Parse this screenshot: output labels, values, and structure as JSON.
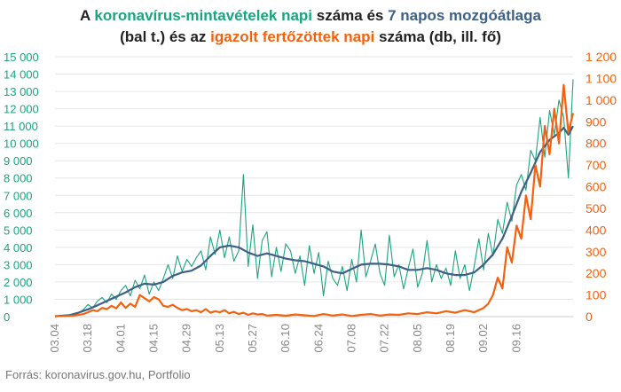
{
  "title": {
    "line1_prefix": "A ",
    "line1_green": "koronavírus-mintavételek napi",
    "line1_mid": " száma és ",
    "line1_blue": "7 napos mozgóátlaga",
    "line2_prefix": "(bal t.) és az ",
    "line2_orange": "igazolt fertőzöttek napi",
    "line2_suffix": " száma (db, ill. fő)"
  },
  "source": "Forrás: koronavirus.gov.hu, Portfolio",
  "colors": {
    "samples": "#1aa57e",
    "moving_avg": "#3e5f86",
    "confirmed": "#f2620f",
    "left_axis_text": "#1aa57e",
    "right_axis_text": "#f2620f",
    "grid": "#e6e6e6"
  },
  "chart_data": {
    "type": "line",
    "x_ticks": [
      "03.04",
      "03.18",
      "04.01",
      "04.15",
      "04.29",
      "05.13",
      "05.27",
      "06.10",
      "06.24",
      "07.08",
      "07.22",
      "08.05",
      "08.19",
      "09.02",
      "09.16"
    ],
    "y_left": {
      "min": 0,
      "max": 15000,
      "step": 1000,
      "tick_labels": [
        "0",
        "1 000",
        "2 000",
        "3 000",
        "4 000",
        "5 000",
        "6 000",
        "7 000",
        "8 000",
        "9 000",
        "10 000",
        "11 000",
        "12 000",
        "13 000",
        "14 000",
        "15 000"
      ]
    },
    "y_right": {
      "min": 0,
      "max": 1200,
      "step": 100,
      "tick_labels": [
        "0",
        "100",
        "200",
        "300",
        "400",
        "500",
        "600",
        "700",
        "800",
        "900",
        "1 000",
        "1 100",
        "1 200"
      ]
    },
    "grid": true,
    "series": [
      {
        "key": "samples",
        "axis": "left",
        "values": [
          [
            0,
            20
          ],
          [
            2,
            60
          ],
          [
            4,
            40
          ],
          [
            6,
            80
          ],
          [
            8,
            120
          ],
          [
            10,
            200
          ],
          [
            12,
            400
          ],
          [
            14,
            700
          ],
          [
            16,
            500
          ],
          [
            18,
            900
          ],
          [
            20,
            1100
          ],
          [
            22,
            800
          ],
          [
            24,
            1300
          ],
          [
            26,
            1000
          ],
          [
            28,
            1500
          ],
          [
            30,
            1800
          ],
          [
            32,
            1200
          ],
          [
            34,
            2100
          ],
          [
            36,
            1600
          ],
          [
            38,
            2400
          ],
          [
            40,
            1300
          ],
          [
            42,
            2000
          ],
          [
            44,
            1500
          ],
          [
            46,
            2200
          ],
          [
            48,
            3000
          ],
          [
            50,
            2200
          ],
          [
            52,
            3500
          ],
          [
            54,
            2600
          ],
          [
            56,
            3300
          ],
          [
            58,
            2900
          ],
          [
            60,
            3400
          ],
          [
            62,
            3800
          ],
          [
            64,
            2700
          ],
          [
            66,
            4600
          ],
          [
            68,
            3600
          ],
          [
            70,
            5000
          ],
          [
            72,
            3400
          ],
          [
            74,
            4600
          ],
          [
            76,
            3200
          ],
          [
            78,
            3800
          ],
          [
            80,
            8200
          ],
          [
            82,
            2900
          ],
          [
            84,
            5300
          ],
          [
            86,
            2200
          ],
          [
            88,
            4400
          ],
          [
            90,
            4900
          ],
          [
            92,
            2300
          ],
          [
            94,
            4000
          ],
          [
            96,
            2600
          ],
          [
            98,
            4200
          ],
          [
            100,
            3800
          ],
          [
            102,
            2500
          ],
          [
            104,
            3500
          ],
          [
            106,
            1800
          ],
          [
            108,
            4100
          ],
          [
            110,
            2500
          ],
          [
            112,
            3700
          ],
          [
            114,
            1200
          ],
          [
            116,
            3200
          ],
          [
            118,
            2200
          ],
          [
            120,
            1800
          ],
          [
            122,
            2900
          ],
          [
            124,
            1500
          ],
          [
            126,
            3300
          ],
          [
            128,
            2000
          ],
          [
            130,
            5000
          ],
          [
            132,
            2300
          ],
          [
            134,
            3200
          ],
          [
            136,
            4200
          ],
          [
            138,
            2500
          ],
          [
            140,
            1800
          ],
          [
            142,
            4700
          ],
          [
            144,
            2300
          ],
          [
            146,
            3000
          ],
          [
            148,
            1600
          ],
          [
            150,
            2800
          ],
          [
            152,
            3900
          ],
          [
            154,
            1700
          ],
          [
            156,
            2500
          ],
          [
            158,
            4400
          ],
          [
            160,
            2000
          ],
          [
            162,
            3000
          ],
          [
            164,
            2200
          ],
          [
            166,
            2800
          ],
          [
            168,
            1800
          ],
          [
            170,
            3800
          ],
          [
            172,
            2200
          ],
          [
            174,
            3000
          ],
          [
            176,
            1500
          ],
          [
            178,
            2900
          ],
          [
            180,
            4500
          ],
          [
            182,
            2700
          ],
          [
            184,
            4800
          ],
          [
            186,
            3500
          ],
          [
            188,
            5600
          ],
          [
            190,
            4800
          ],
          [
            192,
            6600
          ],
          [
            194,
            5500
          ],
          [
            196,
            7600
          ],
          [
            198,
            8200
          ],
          [
            200,
            7300
          ],
          [
            202,
            9600
          ],
          [
            204,
            9000
          ],
          [
            206,
            11500
          ],
          [
            208,
            9200
          ],
          [
            210,
            11900
          ],
          [
            212,
            10500
          ],
          [
            214,
            12500
          ],
          [
            216,
            11500
          ],
          [
            218,
            8000
          ],
          [
            220,
            13700
          ]
        ]
      },
      {
        "key": "moving_avg",
        "axis": "left",
        "values": [
          [
            0,
            20
          ],
          [
            6,
            80
          ],
          [
            10,
            230
          ],
          [
            14,
            420
          ],
          [
            18,
            650
          ],
          [
            22,
            900
          ],
          [
            26,
            1150
          ],
          [
            30,
            1400
          ],
          [
            34,
            1700
          ],
          [
            38,
            1900
          ],
          [
            42,
            1850
          ],
          [
            46,
            2000
          ],
          [
            50,
            2350
          ],
          [
            54,
            2550
          ],
          [
            58,
            2650
          ],
          [
            62,
            2950
          ],
          [
            66,
            3500
          ],
          [
            70,
            4000
          ],
          [
            74,
            4100
          ],
          [
            78,
            4000
          ],
          [
            82,
            3700
          ],
          [
            86,
            3500
          ],
          [
            90,
            3650
          ],
          [
            94,
            3500
          ],
          [
            98,
            3350
          ],
          [
            102,
            3250
          ],
          [
            106,
            3200
          ],
          [
            110,
            3050
          ],
          [
            114,
            2900
          ],
          [
            118,
            2600
          ],
          [
            122,
            2500
          ],
          [
            126,
            2750
          ],
          [
            130,
            3000
          ],
          [
            134,
            3050
          ],
          [
            138,
            3050
          ],
          [
            142,
            3000
          ],
          [
            146,
            2900
          ],
          [
            150,
            2700
          ],
          [
            154,
            2700
          ],
          [
            158,
            2800
          ],
          [
            162,
            2700
          ],
          [
            166,
            2500
          ],
          [
            170,
            2400
          ],
          [
            174,
            2400
          ],
          [
            178,
            2550
          ],
          [
            182,
            3000
          ],
          [
            186,
            3600
          ],
          [
            190,
            4500
          ],
          [
            194,
            5800
          ],
          [
            198,
            7200
          ],
          [
            202,
            8300
          ],
          [
            206,
            9500
          ],
          [
            210,
            10200
          ],
          [
            214,
            10600
          ],
          [
            216,
            10900
          ],
          [
            218,
            10500
          ],
          [
            220,
            11000
          ]
        ]
      },
      {
        "key": "confirmed",
        "axis": "right",
        "values": [
          [
            0,
            2
          ],
          [
            4,
            3
          ],
          [
            8,
            5
          ],
          [
            10,
            8
          ],
          [
            12,
            12
          ],
          [
            14,
            20
          ],
          [
            16,
            30
          ],
          [
            18,
            25
          ],
          [
            20,
            40
          ],
          [
            22,
            35
          ],
          [
            24,
            50
          ],
          [
            26,
            38
          ],
          [
            28,
            65
          ],
          [
            30,
            40
          ],
          [
            32,
            60
          ],
          [
            34,
            45
          ],
          [
            36,
            100
          ],
          [
            38,
            85
          ],
          [
            40,
            70
          ],
          [
            42,
            90
          ],
          [
            44,
            80
          ],
          [
            46,
            50
          ],
          [
            48,
            45
          ],
          [
            50,
            55
          ],
          [
            52,
            40
          ],
          [
            54,
            30
          ],
          [
            56,
            35
          ],
          [
            58,
            25
          ],
          [
            60,
            30
          ],
          [
            62,
            20
          ],
          [
            64,
            35
          ],
          [
            66,
            18
          ],
          [
            68,
            25
          ],
          [
            70,
            20
          ],
          [
            72,
            30
          ],
          [
            74,
            15
          ],
          [
            76,
            22
          ],
          [
            78,
            12
          ],
          [
            80,
            18
          ],
          [
            82,
            8
          ],
          [
            84,
            15
          ],
          [
            86,
            10
          ],
          [
            88,
            12
          ],
          [
            90,
            5
          ],
          [
            94,
            8
          ],
          [
            98,
            4
          ],
          [
            102,
            10
          ],
          [
            106,
            6
          ],
          [
            110,
            3
          ],
          [
            114,
            12
          ],
          [
            118,
            5
          ],
          [
            122,
            10
          ],
          [
            126,
            3
          ],
          [
            130,
            8
          ],
          [
            134,
            12
          ],
          [
            138,
            5
          ],
          [
            142,
            10
          ],
          [
            146,
            8
          ],
          [
            150,
            15
          ],
          [
            154,
            12
          ],
          [
            158,
            20
          ],
          [
            162,
            15
          ],
          [
            166,
            25
          ],
          [
            170,
            18
          ],
          [
            174,
            30
          ],
          [
            178,
            20
          ],
          [
            182,
            40
          ],
          [
            184,
            60
          ],
          [
            186,
            100
          ],
          [
            188,
            180
          ],
          [
            190,
            130
          ],
          [
            192,
            320
          ],
          [
            194,
            250
          ],
          [
            196,
            420
          ],
          [
            198,
            360
          ],
          [
            200,
            560
          ],
          [
            202,
            450
          ],
          [
            204,
            700
          ],
          [
            206,
            600
          ],
          [
            208,
            880
          ],
          [
            210,
            750
          ],
          [
            212,
            960
          ],
          [
            214,
            800
          ],
          [
            216,
            1070
          ],
          [
            218,
            850
          ],
          [
            220,
            940
          ]
        ]
      }
    ],
    "x_range": [
      0,
      220
    ]
  }
}
